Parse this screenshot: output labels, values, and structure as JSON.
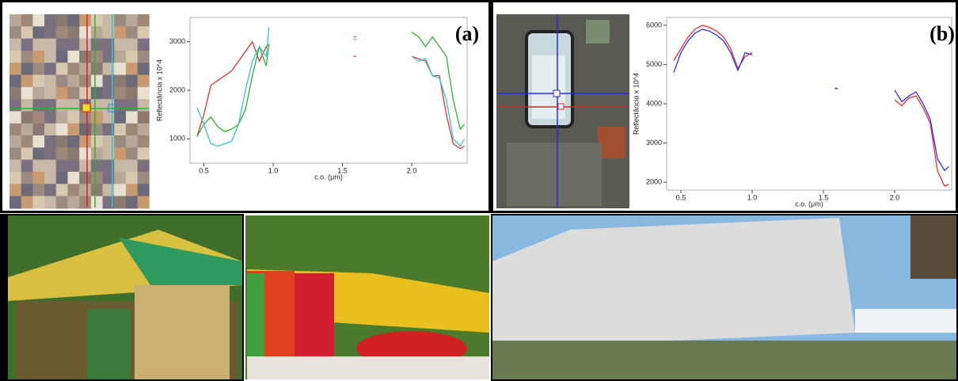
{
  "chart_data": [
    {
      "type": "line",
      "annotation": "(a)",
      "x_label": "c.o. (μm)",
      "y_label": "Reflectância x 10^4",
      "x": [
        0.45,
        0.5,
        0.55,
        0.6,
        0.65,
        0.7,
        0.75,
        0.8,
        0.85,
        0.9,
        0.95,
        0.97,
        1.3,
        1.58,
        1.6,
        1.8,
        2.0,
        2.05,
        2.1,
        2.15,
        2.2,
        2.25,
        2.3,
        2.35,
        2.38
      ],
      "series": [
        {
          "color": "#e83030",
          "values": [
            1050,
            1500,
            2100,
            2200,
            2300,
            2400,
            2600,
            2800,
            3000,
            2600,
            2900,
            2950,
            null,
            2700,
            2700,
            null,
            2700,
            2650,
            2600,
            2300,
            2300,
            1500,
            900,
            800,
            850
          ]
        },
        {
          "color": "#30b030",
          "values": [
            1050,
            1300,
            1450,
            1250,
            1150,
            1200,
            1300,
            1600,
            2300,
            2900,
            2500,
            2950,
            null,
            3100,
            3100,
            null,
            3200,
            3100,
            2900,
            3100,
            2900,
            2700,
            1800,
            1200,
            1300
          ]
        },
        {
          "color": "#30c8c8",
          "values": [
            1650,
            1300,
            900,
            850,
            900,
            950,
            1300,
            2000,
            2600,
            2900,
            2700,
            3300,
            null,
            3050,
            3050,
            null,
            2700,
            2600,
            2650,
            2300,
            2250,
            1800,
            1000,
            850,
            1000
          ]
        }
      ],
      "xlim": [
        0.4,
        2.4
      ],
      "xticks": [
        0.5,
        {
          "value": 1,
          "label": "1.0"
        },
        1.5,
        {
          "value": 2,
          "label": "2.0"
        }
      ],
      "ylim": [
        500,
        3500
      ],
      "yticks": [
        1000,
        2000,
        3000
      ]
    },
    {
      "type": "line",
      "annotation": "(b)",
      "x_label": "c.o. (μm)",
      "y_label": "Reflectância x 10^4",
      "x": [
        0.45,
        0.5,
        0.55,
        0.6,
        0.65,
        0.7,
        0.75,
        0.8,
        0.85,
        0.9,
        0.95,
        1.0,
        1.3,
        1.58,
        1.6,
        1.8,
        2.0,
        2.05,
        2.1,
        2.15,
        2.2,
        2.25,
        2.3,
        2.35,
        2.38
      ],
      "series": [
        {
          "color": "#e83030",
          "values": [
            5100,
            5400,
            5700,
            5900,
            6000,
            5950,
            5850,
            5700,
            5400,
            4900,
            5200,
            5300,
            null,
            4400,
            4380,
            null,
            4100,
            3950,
            4150,
            4200,
            3900,
            3500,
            2300,
            1900,
            1950
          ]
        },
        {
          "color": "#3030e0",
          "values": [
            4800,
            5300,
            5600,
            5800,
            5900,
            5850,
            5750,
            5600,
            5300,
            4850,
            5300,
            5250,
            null,
            4400,
            4380,
            null,
            4350,
            4050,
            4200,
            4300,
            4000,
            3600,
            2600,
            2300,
            2400
          ]
        }
      ],
      "xlim": [
        0.4,
        2.4
      ],
      "xticks": [
        0.5,
        {
          "value": 1,
          "label": "1.0"
        },
        1.5,
        {
          "value": 2,
          "label": "2.0"
        }
      ],
      "ylim": [
        1800,
        6200
      ],
      "yticks": [
        2000,
        3000,
        4000,
        5000,
        6000
      ]
    }
  ]
}
